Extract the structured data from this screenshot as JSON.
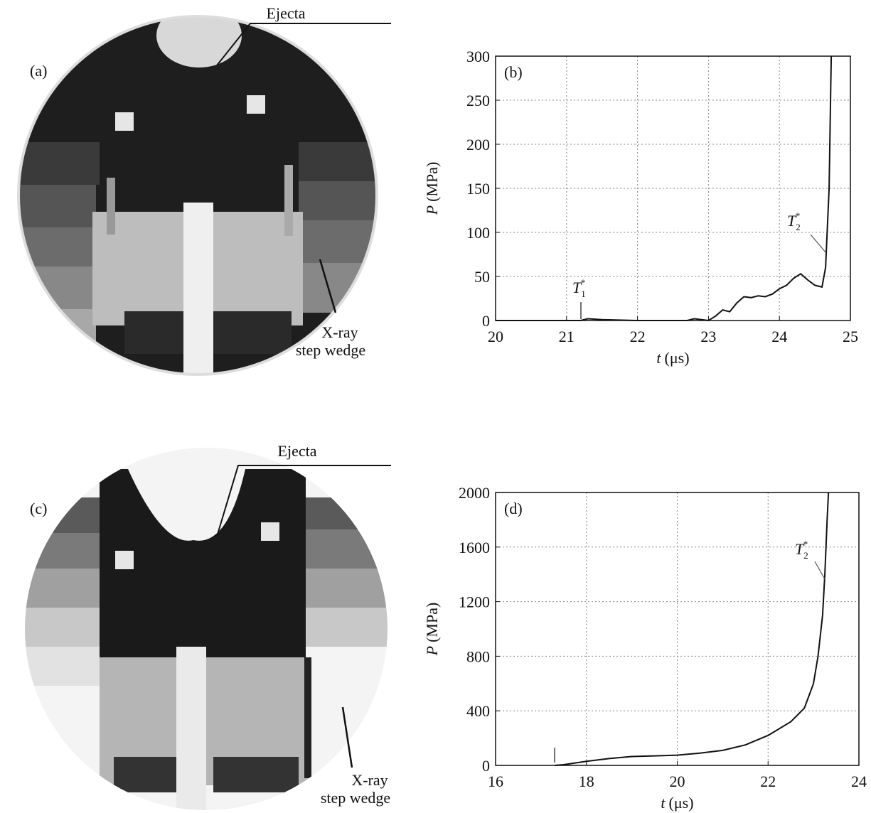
{
  "panels": [
    {
      "label": "(a)",
      "annotations": [
        "Ejecta",
        "X-ray",
        "step wedge"
      ]
    },
    {
      "label": "(c)",
      "annotations": [
        "Ejecta",
        "X-ray",
        "step wedge"
      ]
    }
  ],
  "chart_data": [
    {
      "type": "line",
      "panel_label": "(b)",
      "x_label": {
        "symbol": "t",
        "unit": "(μs)"
      },
      "y_label": {
        "symbol": "P",
        "unit": "(MPa)"
      },
      "xlim": [
        20,
        25
      ],
      "xticks": [
        20,
        21,
        22,
        23,
        24,
        25
      ],
      "ylim": [
        0,
        300
      ],
      "yticks": [
        0,
        50,
        100,
        150,
        200,
        250,
        300
      ],
      "grid": true,
      "series": [
        {
          "color": "#111111",
          "x": [
            20,
            21.2,
            21.3,
            21.5,
            22,
            22.7,
            22.8,
            22.9,
            23.0,
            23.1,
            23.2,
            23.3,
            23.4,
            23.5,
            23.6,
            23.7,
            23.8,
            23.9,
            24.0,
            24.1,
            24.2,
            24.3,
            24.4,
            24.5,
            24.6,
            24.65,
            24.7,
            24.73
          ],
          "values": [
            0,
            0,
            2,
            1,
            0,
            0,
            2,
            1,
            0,
            5,
            12,
            10,
            20,
            27,
            26,
            28,
            27,
            30,
            36,
            40,
            48,
            53,
            46,
            40,
            38,
            60,
            150,
            300
          ]
        }
      ],
      "annotations": [
        {
          "text": "T",
          "sub": "1",
          "sup": "*"
        },
        {
          "text": "T",
          "sub": "2",
          "sup": "*"
        }
      ]
    },
    {
      "type": "line",
      "panel_label": "(d)",
      "x_label": {
        "symbol": "t",
        "unit": "(μs)"
      },
      "y_label": {
        "symbol": "P",
        "unit": "(MPa)"
      },
      "xlim": [
        16,
        24
      ],
      "xticks": [
        16,
        18,
        20,
        22,
        24
      ],
      "ylim": [
        0,
        2000
      ],
      "yticks": [
        0,
        400,
        800,
        1200,
        1600,
        2000
      ],
      "grid": true,
      "series": [
        {
          "color": "#111111",
          "x": [
            17.3,
            17.5,
            18,
            18.5,
            19,
            19.5,
            20,
            20.5,
            21,
            21.5,
            22,
            22.5,
            22.8,
            23,
            23.1,
            23.2,
            23.25,
            23.3,
            23.33
          ],
          "values": [
            0,
            5,
            30,
            50,
            65,
            70,
            75,
            90,
            110,
            150,
            220,
            320,
            420,
            600,
            800,
            1100,
            1400,
            1800,
            2000
          ]
        }
      ],
      "annotations": [
        {
          "text": "T",
          "sub": "2",
          "sup": "*"
        }
      ]
    }
  ]
}
